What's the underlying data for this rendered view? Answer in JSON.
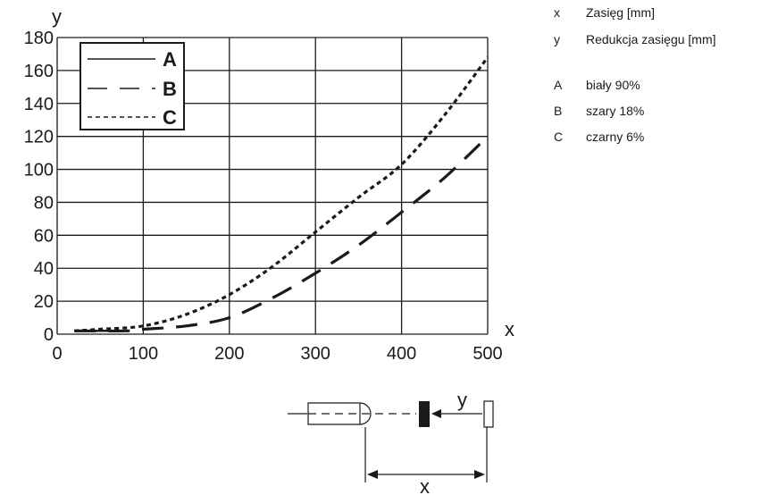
{
  "chart_data": {
    "type": "line",
    "xlabel": "x",
    "ylabel": "y",
    "xlim": [
      0,
      500
    ],
    "ylim": [
      0,
      180
    ],
    "x_ticks": [
      0,
      100,
      200,
      300,
      400,
      500
    ],
    "y_ticks": [
      0,
      20,
      40,
      60,
      80,
      100,
      120,
      140,
      160,
      180
    ],
    "grid": true,
    "legend_position": "top-left",
    "series": [
      {
        "name": "A",
        "style": "solid",
        "x": [
          20,
          80
        ],
        "y": [
          2,
          2
        ]
      },
      {
        "name": "B",
        "style": "long-dash",
        "x": [
          20,
          80,
          100,
          150,
          200,
          250,
          300,
          350,
          400,
          450,
          500
        ],
        "y": [
          2,
          2,
          3,
          5,
          10,
          22,
          37,
          54,
          74,
          95,
          120
        ]
      },
      {
        "name": "C",
        "style": "short-dash",
        "x": [
          20,
          50,
          100,
          150,
          200,
          250,
          300,
          350,
          400,
          450,
          500
        ],
        "y": [
          2,
          3,
          5,
          12,
          24,
          41,
          62,
          83,
          103,
          133,
          168
        ]
      }
    ]
  },
  "key": [
    {
      "symbol": "x",
      "text": "Zasięg [mm]"
    },
    {
      "symbol": "y",
      "text": "Redukcja zasięgu [mm]"
    },
    {
      "symbol": "A",
      "text": "biały 90%"
    },
    {
      "symbol": "B",
      "text": "szary 18%"
    },
    {
      "symbol": "C",
      "text": "czarny 6%"
    }
  ],
  "diagram": {
    "x_label": "x",
    "y_label": "y"
  },
  "colors": {
    "ink": "#1a1a1a",
    "grid": "#1a1a1a"
  }
}
